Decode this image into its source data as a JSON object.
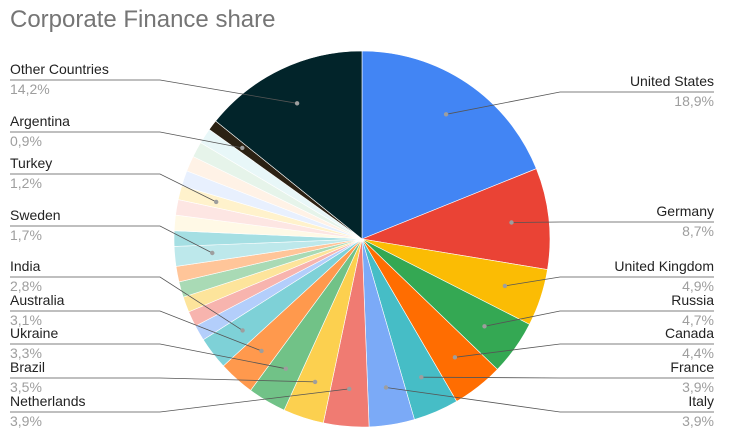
{
  "chart_data": {
    "type": "pie",
    "title": "Corporate Finance share",
    "labeled_slices": [
      {
        "name": "United States",
        "value": "18,9%",
        "color": "#4285f4"
      },
      {
        "name": "Germany",
        "value": "8,7%",
        "color": "#ea4335"
      },
      {
        "name": "United Kingdom",
        "value": "4,9%",
        "color": "#fbbc04"
      },
      {
        "name": "Russia",
        "value": "4,7%",
        "color": "#34a853"
      },
      {
        "name": "Canada",
        "value": "4,4%",
        "color": "#ff6d01"
      },
      {
        "name": "France",
        "value": "3,9%",
        "color": "#46bdc6"
      },
      {
        "name": "Italy",
        "value": "3,9%",
        "color": "#7baaf7"
      },
      {
        "name": "Netherlands",
        "value": "3,9%",
        "color": "#f07b72"
      },
      {
        "name": "Brazil",
        "value": "3,5%",
        "color": "#fcd04f"
      },
      {
        "name": "Ukraine",
        "value": "3,3%",
        "color": "#71c287"
      },
      {
        "name": "Australia",
        "value": "3,1%",
        "color": "#ff994d"
      },
      {
        "name": "India",
        "value": "2,8%",
        "color": "#7ed1d7"
      },
      {
        "name": "Sweden",
        "value": "1,7%",
        "color": "#bde8eb"
      },
      {
        "name": "Turkey",
        "value": "1,2%",
        "color": "#fff2cc"
      },
      {
        "name": "Argentina",
        "value": "0,9%",
        "color": "#2b2113"
      },
      {
        "name": "Other Countries",
        "value": "14,2%",
        "color": "#02242a"
      }
    ],
    "unlabeled_slice_colors": [
      "#b3cefb",
      "#f7b4ae",
      "#fde49b",
      "#a9dab5",
      "#ffc599",
      "#a5dfe3",
      "#fff9e6",
      "#fde6e3",
      "#e8f0fe",
      "#fff2e6",
      "#e6f4ea",
      "#e8f7f8"
    ],
    "legend": "labels-beside-slices"
  }
}
